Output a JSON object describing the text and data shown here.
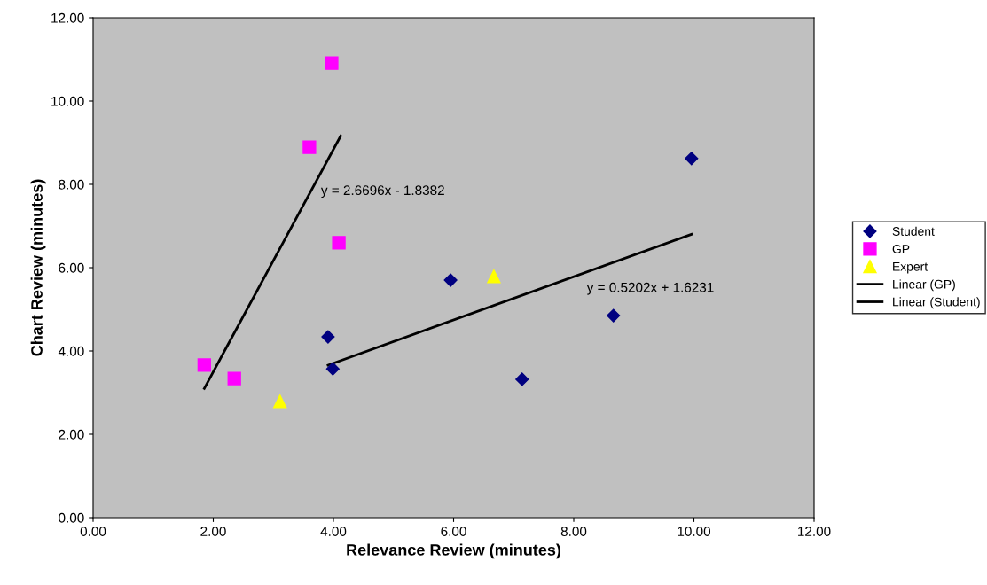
{
  "chart_data": {
    "type": "scatter",
    "xlabel": "Relevance Review (minutes)",
    "ylabel": "Chart Review (minutes)",
    "xlim": [
      0,
      12
    ],
    "ylim": [
      0,
      12
    ],
    "xticks": [
      {
        "value": 0,
        "label": "0.00"
      },
      {
        "value": 2,
        "label": "2.00"
      },
      {
        "value": 4,
        "label": "4.00"
      },
      {
        "value": 6,
        "label": "6.00"
      },
      {
        "value": 8,
        "label": "8.00"
      },
      {
        "value": 10,
        "label": "10.00"
      },
      {
        "value": 12,
        "label": "12.00"
      }
    ],
    "yticks": [
      {
        "value": 0,
        "label": "0.00"
      },
      {
        "value": 2,
        "label": "2.00"
      },
      {
        "value": 4,
        "label": "4.00"
      },
      {
        "value": 6,
        "label": "6.00"
      },
      {
        "value": 8,
        "label": "8.00"
      },
      {
        "value": 10,
        "label": "10.00"
      },
      {
        "value": 12,
        "label": "12.00"
      }
    ],
    "grid": false,
    "legend": "right",
    "series": [
      {
        "name": "Student",
        "color": "#000080",
        "marker": "diamond",
        "x": [
          3.91,
          3.99,
          5.95,
          7.14,
          8.66,
          9.96
        ],
        "values": [
          4.34,
          3.57,
          5.7,
          3.32,
          4.85,
          8.62
        ]
      },
      {
        "name": "GP",
        "color": "#ff00ff",
        "marker": "square",
        "x": [
          3.97,
          3.6,
          4.09,
          1.85,
          2.35
        ],
        "values": [
          10.91,
          8.89,
          6.6,
          3.66,
          3.34
        ]
      },
      {
        "name": "Expert",
        "color": "#ffff00",
        "marker": "triangle",
        "x": [
          3.11,
          6.67
        ],
        "values": [
          2.79,
          5.79
        ]
      },
      {
        "name": "Linear (GP)",
        "type": "line",
        "color": "#000000",
        "marker": "none",
        "line_style": "solid",
        "x": [
          1.85,
          4.12
        ],
        "values": [
          3.1,
          9.16
        ]
      },
      {
        "name": "Linear (Student)",
        "type": "line",
        "color": "#000000",
        "marker": "none",
        "line_style": "solid",
        "x": [
          3.91,
          9.96
        ],
        "values": [
          3.66,
          6.8
        ]
      }
    ],
    "annotations": [
      "y = 2.6696x - 1.8382",
      "y = 0.5202x + 1.6231"
    ]
  }
}
